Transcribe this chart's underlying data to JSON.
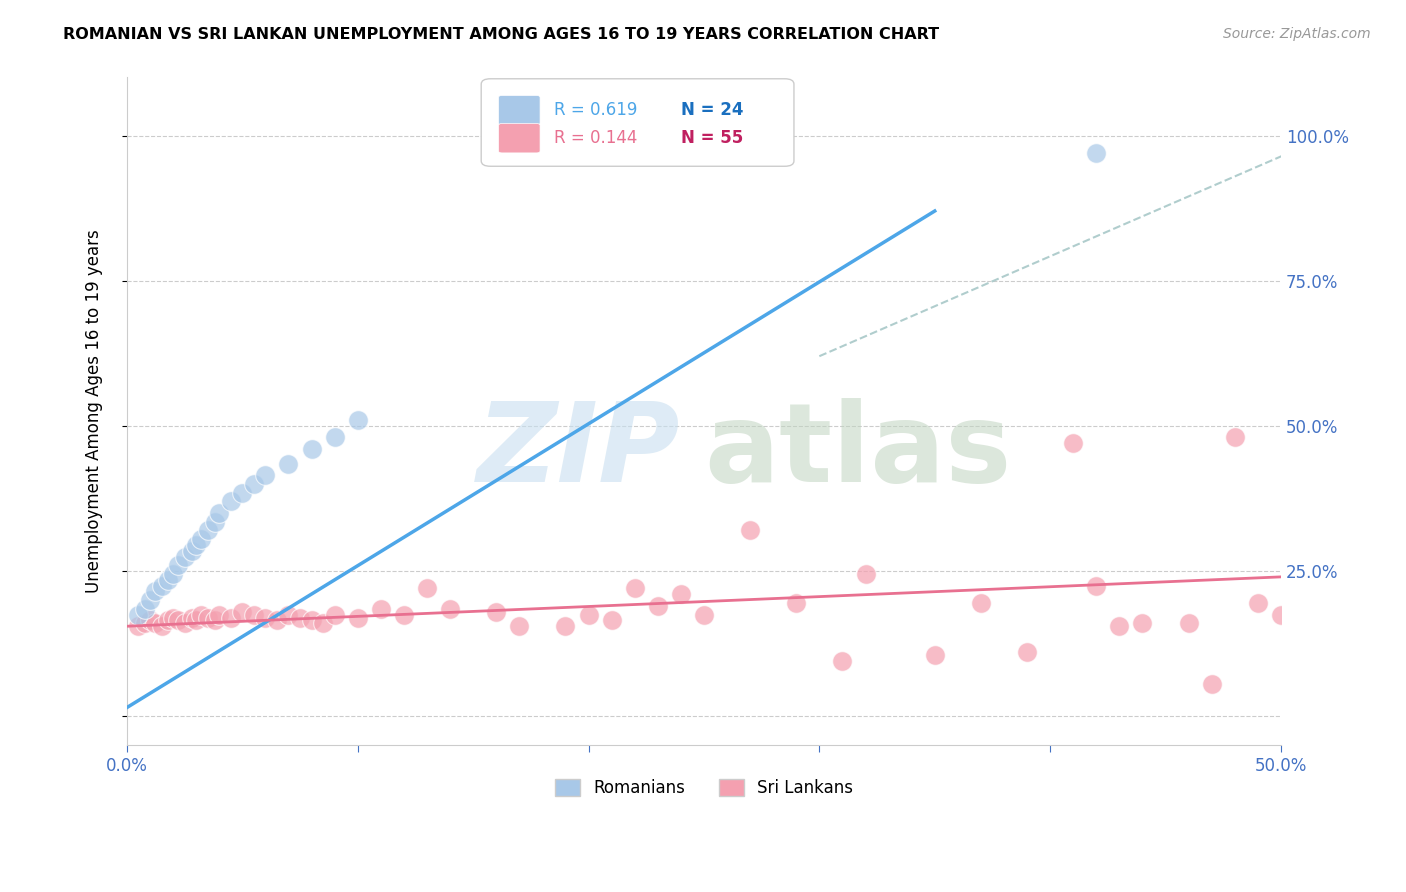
{
  "title": "ROMANIAN VS SRI LANKAN UNEMPLOYMENT AMONG AGES 16 TO 19 YEARS CORRELATION CHART",
  "source": "Source: ZipAtlas.com",
  "ylabel_label": "Unemployment Among Ages 16 to 19 years",
  "xlim": [
    0.0,
    0.5
  ],
  "ylim": [
    -0.05,
    1.1
  ],
  "xlabel_vals": [
    0.0,
    0.1,
    0.2,
    0.3,
    0.4,
    0.5
  ],
  "xlabel_ticks": [
    "0.0%",
    "",
    "",
    "",
    "",
    "50.0%"
  ],
  "ylabel_vals": [
    0.0,
    0.25,
    0.5,
    0.75,
    1.0
  ],
  "ylabel_right_ticks": [
    "",
    "25.0%",
    "50.0%",
    "75.0%",
    "100.0%"
  ],
  "romanians_color": "#a8c8e8",
  "srilankans_color": "#f4a0b0",
  "blue_line_color": "#4da6e8",
  "pink_line_color": "#e87090",
  "ref_line_color": "#a8c8c8",
  "R_romanian": "R = 0.619",
  "N_romanian": "N = 24",
  "R_srilankan": "R = 0.144",
  "N_srilankan": "N = 55",
  "legend_R_color": "#4da6e8",
  "legend_N_color": "#1a6fbf",
  "legend_R2_color": "#e87090",
  "legend_N2_color": "#c02060",
  "romanians_x": [
    0.005,
    0.008,
    0.01,
    0.012,
    0.015,
    0.018,
    0.02,
    0.022,
    0.025,
    0.028,
    0.03,
    0.032,
    0.035,
    0.038,
    0.04,
    0.045,
    0.05,
    0.055,
    0.06,
    0.07,
    0.08,
    0.09,
    0.1,
    0.42
  ],
  "romanians_y": [
    0.175,
    0.185,
    0.2,
    0.215,
    0.225,
    0.235,
    0.245,
    0.26,
    0.275,
    0.285,
    0.295,
    0.305,
    0.32,
    0.335,
    0.35,
    0.37,
    0.385,
    0.4,
    0.415,
    0.435,
    0.46,
    0.48,
    0.51,
    0.97
  ],
  "srilankans_x": [
    0.005,
    0.008,
    0.01,
    0.012,
    0.015,
    0.018,
    0.02,
    0.022,
    0.025,
    0.028,
    0.03,
    0.032,
    0.035,
    0.038,
    0.04,
    0.045,
    0.05,
    0.055,
    0.06,
    0.065,
    0.07,
    0.075,
    0.08,
    0.085,
    0.09,
    0.1,
    0.11,
    0.12,
    0.13,
    0.14,
    0.16,
    0.17,
    0.19,
    0.2,
    0.21,
    0.22,
    0.23,
    0.24,
    0.25,
    0.27,
    0.29,
    0.31,
    0.32,
    0.35,
    0.37,
    0.39,
    0.41,
    0.42,
    0.43,
    0.44,
    0.46,
    0.47,
    0.48,
    0.49,
    0.5
  ],
  "srilankans_y": [
    0.155,
    0.16,
    0.165,
    0.16,
    0.155,
    0.165,
    0.17,
    0.165,
    0.16,
    0.17,
    0.165,
    0.175,
    0.17,
    0.165,
    0.175,
    0.17,
    0.18,
    0.175,
    0.17,
    0.165,
    0.175,
    0.17,
    0.165,
    0.16,
    0.175,
    0.17,
    0.185,
    0.175,
    0.22,
    0.185,
    0.18,
    0.155,
    0.155,
    0.175,
    0.165,
    0.22,
    0.19,
    0.21,
    0.175,
    0.32,
    0.195,
    0.095,
    0.245,
    0.105,
    0.195,
    0.11,
    0.47,
    0.225,
    0.155,
    0.16,
    0.16,
    0.055,
    0.48,
    0.195,
    0.175
  ],
  "blue_line_x": [
    0.0,
    0.35
  ],
  "blue_line_y": [
    0.015,
    0.87
  ],
  "pink_line_x": [
    0.0,
    0.5
  ],
  "pink_line_y": [
    0.155,
    0.24
  ],
  "ref_line_x": [
    0.3,
    0.55
  ],
  "ref_line_y": [
    0.62,
    1.05
  ]
}
